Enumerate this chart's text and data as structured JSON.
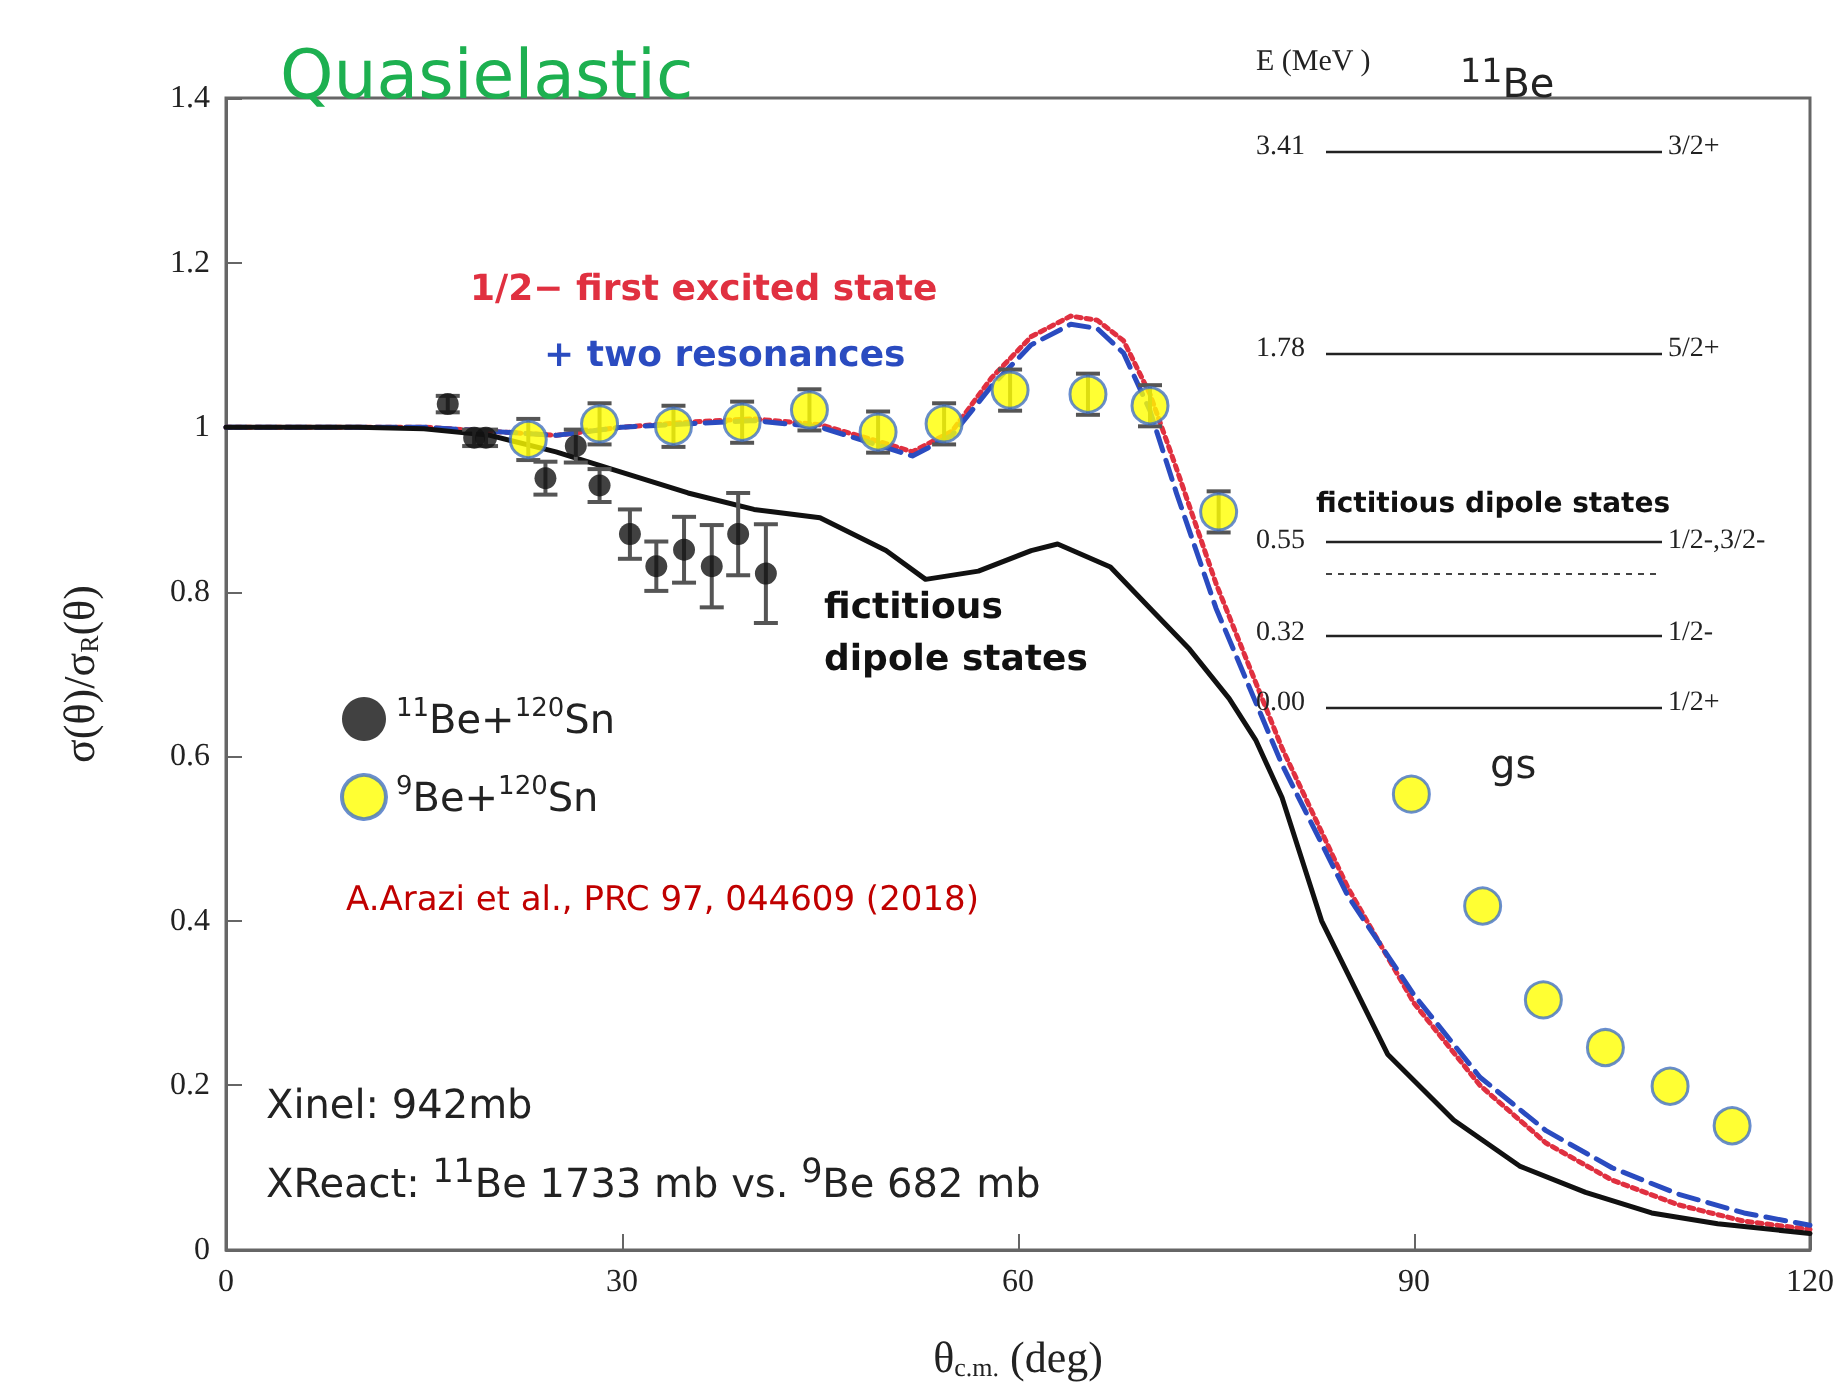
{
  "chart_data": {
    "type": "scatter",
    "title": "Quasielastic",
    "xlabel": "θ$_{c.m.}$ (deg)",
    "ylabel": "σ(θ)/σ$_{R}$(θ)",
    "xlim": [
      0,
      120
    ],
    "xticks": [
      0,
      30,
      60,
      90,
      120
    ],
    "ylim": [
      0,
      1.4
    ],
    "yticks": [
      0,
      0.2,
      0.4,
      0.6,
      0.8,
      1,
      1.2,
      1.4
    ],
    "grid": false,
    "legend": "left",
    "series": [
      {
        "name": "1/2− first excited state",
        "type": "line",
        "marker": "none",
        "line_style": "dotted",
        "color": "#e03040",
        "x": [
          0,
          10,
          15,
          20,
          25,
          30,
          35,
          40,
          45,
          50,
          52,
          55,
          58,
          61,
          64,
          66,
          68,
          70,
          72,
          75,
          80,
          85,
          90,
          95,
          100,
          105,
          110,
          115,
          120
        ],
        "values": [
          1,
          1,
          1,
          0.995,
          0.99,
          1.0,
          1.006,
          1.01,
          1.003,
          0.98,
          0.97,
          0.995,
          1.06,
          1.11,
          1.135,
          1.13,
          1.105,
          1.04,
          0.95,
          0.81,
          0.61,
          0.44,
          0.3,
          0.2,
          0.13,
          0.085,
          0.055,
          0.035,
          0.025
        ]
      },
      {
        "name": "+ two resonances",
        "type": "line",
        "marker": "none",
        "line_style": "dashed",
        "color": "#2a4bc0",
        "x": [
          0,
          10,
          15,
          20,
          25,
          30,
          35,
          40,
          45,
          50,
          52,
          55,
          58,
          61,
          64,
          66,
          68,
          70,
          72,
          75,
          80,
          85,
          90,
          95,
          100,
          105,
          110,
          115,
          120
        ],
        "values": [
          1,
          1,
          1,
          0.995,
          0.99,
          1.0,
          1.004,
          1.008,
          1.0,
          0.975,
          0.965,
          0.99,
          1.05,
          1.1,
          1.125,
          1.12,
          1.09,
          1.02,
          0.92,
          0.78,
          0.59,
          0.43,
          0.31,
          0.21,
          0.145,
          0.1,
          0.068,
          0.045,
          0.03
        ]
      },
      {
        "name": "fictitious dipole states",
        "type": "line",
        "marker": "none",
        "line_style": "solid",
        "color": "#111111",
        "x": [
          0,
          10,
          15,
          20,
          25,
          30,
          35,
          40,
          45,
          50,
          53,
          57,
          61,
          63,
          67,
          70,
          73,
          76,
          78,
          80,
          83,
          88,
          93,
          98,
          103,
          108,
          113,
          120
        ],
        "values": [
          1,
          1,
          0.998,
          0.99,
          0.97,
          0.945,
          0.92,
          0.9,
          0.89,
          0.85,
          0.815,
          0.825,
          0.85,
          0.858,
          0.83,
          0.78,
          0.73,
          0.67,
          0.62,
          0.55,
          0.4,
          0.238,
          0.158,
          0.102,
          0.07,
          0.045,
          0.032,
          0.02
        ]
      },
      {
        "name": "$^{11}$Be+$^{120}$Sn",
        "marker": "circle",
        "color": "#111111",
        "x": [
          16.8,
          18.8,
          19.7,
          24.2,
          26.5,
          28.3,
          30.6,
          32.6,
          34.7,
          36.8,
          38.8,
          40.9
        ],
        "values": [
          1.028,
          0.987,
          0.987,
          0.938,
          0.977,
          0.929,
          0.87,
          0.831,
          0.851,
          0.831,
          0.87,
          0.822
        ],
        "errors": [
          0.01,
          0.01,
          0.01,
          0.02,
          0.02,
          0.02,
          0.03,
          0.03,
          0.04,
          0.05,
          0.05,
          0.06
        ]
      },
      {
        "name": "$^{9}$Be+$^{120}$Sn",
        "marker": "circle",
        "color": "#ffff00",
        "x": [
          22.9,
          28.3,
          33.9,
          39.1,
          44.2,
          49.4,
          54.4,
          59.4,
          65.3,
          70.0,
          75.2,
          89.8,
          95.2,
          99.8,
          104.5,
          109.4,
          114.1
        ],
        "values": [
          0.985,
          1.004,
          1.001,
          1.006,
          1.021,
          0.994,
          1.004,
          1.045,
          1.04,
          1.026,
          0.897,
          0.554,
          0.418,
          0.304,
          0.246,
          0.199,
          0.151
        ],
        "errors": [
          0.025,
          0.025,
          0.025,
          0.025,
          0.025,
          0.025,
          0.025,
          0.025,
          0.025,
          0.025,
          0.025,
          null,
          null,
          null,
          null,
          null,
          null
        ]
      }
    ],
    "annotations": [
      "A.Arazi et al., PRC 97, 044609 (2018)",
      "Xinel: 942mb",
      "XReact: $^{11}$Be 1733 mb vs. $^{9}$Be 682 mb",
      "gs",
      "E (MeV )",
      "$^{11}$Be",
      "3.41",
      "3/2+",
      "1.78",
      "5/2+",
      "fictitious dipole states",
      "0.55",
      "1/2-,3/2-",
      "0.32",
      "1/2-",
      "0.00",
      "1/2+"
    ]
  }
}
